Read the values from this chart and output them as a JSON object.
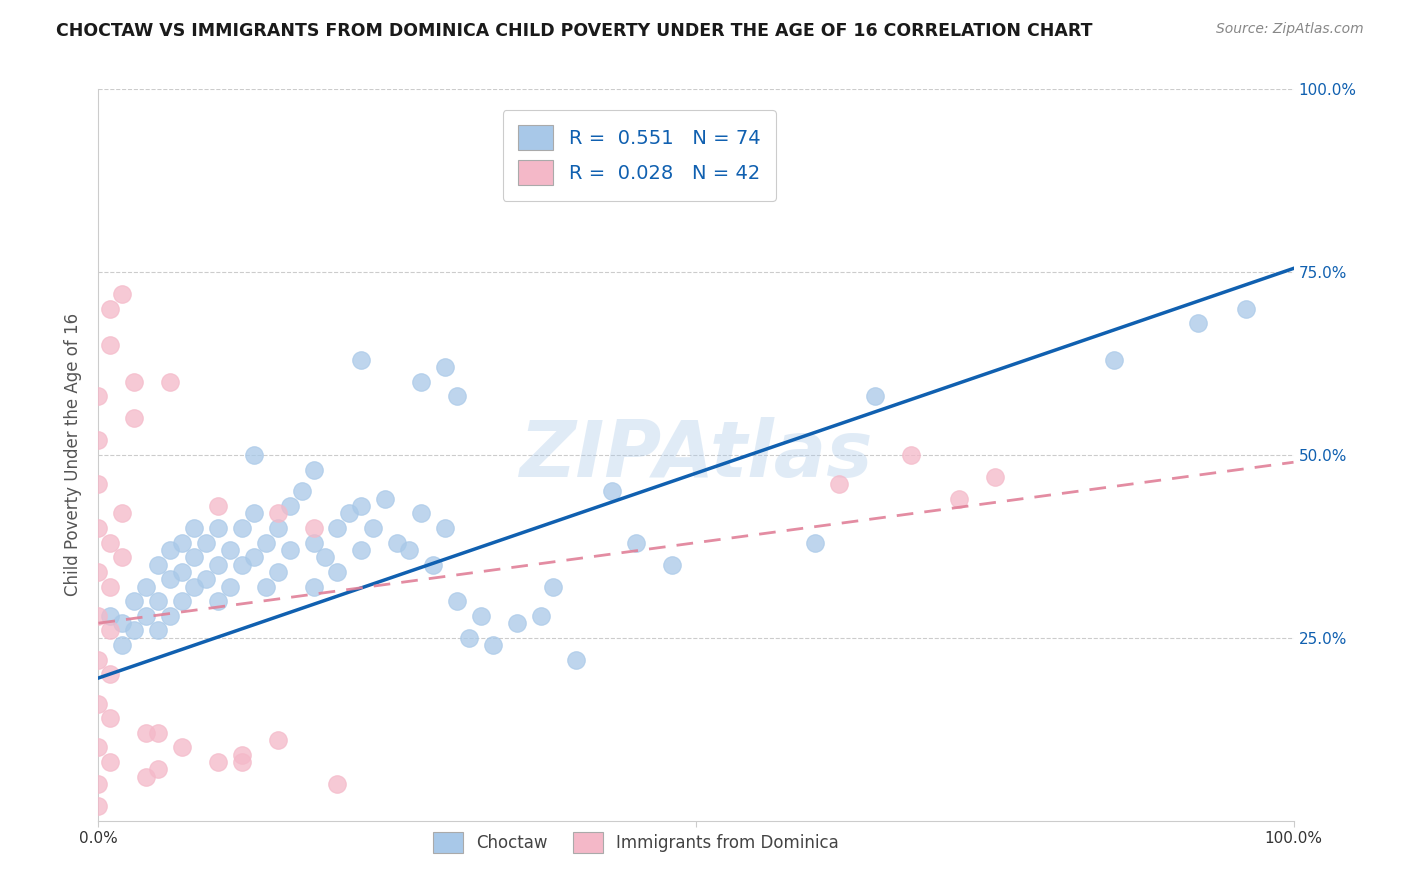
{
  "title": "CHOCTAW VS IMMIGRANTS FROM DOMINICA CHILD POVERTY UNDER THE AGE OF 16 CORRELATION CHART",
  "source": "Source: ZipAtlas.com",
  "ylabel": "Child Poverty Under the Age of 16",
  "watermark": "ZIPAtlas",
  "legend1_R": "0.551",
  "legend1_N": "74",
  "legend2_R": "0.028",
  "legend2_N": "42",
  "blue_color": "#a8c8e8",
  "pink_color": "#f4b8c8",
  "line_blue": "#1060b0",
  "line_pink": "#e08098",
  "xlim": [
    0,
    1
  ],
  "ylim": [
    0,
    1
  ],
  "blue_scatter_x": [
    0.01,
    0.02,
    0.02,
    0.03,
    0.03,
    0.04,
    0.04,
    0.05,
    0.05,
    0.05,
    0.06,
    0.06,
    0.06,
    0.07,
    0.07,
    0.07,
    0.08,
    0.08,
    0.08,
    0.09,
    0.09,
    0.1,
    0.1,
    0.1,
    0.11,
    0.11,
    0.12,
    0.12,
    0.13,
    0.13,
    0.14,
    0.14,
    0.15,
    0.15,
    0.16,
    0.16,
    0.17,
    0.18,
    0.18,
    0.19,
    0.2,
    0.2,
    0.21,
    0.22,
    0.22,
    0.23,
    0.24,
    0.25,
    0.26,
    0.27,
    0.28,
    0.29,
    0.3,
    0.31,
    0.32,
    0.33,
    0.35,
    0.37,
    0.38,
    0.4,
    0.43,
    0.45,
    0.48,
    0.27,
    0.29,
    0.3,
    0.22,
    0.18,
    0.13,
    0.6,
    0.65,
    0.85,
    0.92,
    0.96
  ],
  "blue_scatter_y": [
    0.28,
    0.27,
    0.24,
    0.3,
    0.26,
    0.32,
    0.28,
    0.35,
    0.3,
    0.26,
    0.37,
    0.33,
    0.28,
    0.38,
    0.34,
    0.3,
    0.4,
    0.36,
    0.32,
    0.38,
    0.33,
    0.4,
    0.35,
    0.3,
    0.37,
    0.32,
    0.4,
    0.35,
    0.42,
    0.36,
    0.38,
    0.32,
    0.4,
    0.34,
    0.43,
    0.37,
    0.45,
    0.38,
    0.32,
    0.36,
    0.4,
    0.34,
    0.42,
    0.43,
    0.37,
    0.4,
    0.44,
    0.38,
    0.37,
    0.42,
    0.35,
    0.4,
    0.3,
    0.25,
    0.28,
    0.24,
    0.27,
    0.28,
    0.32,
    0.22,
    0.45,
    0.38,
    0.35,
    0.6,
    0.62,
    0.58,
    0.63,
    0.48,
    0.5,
    0.38,
    0.58,
    0.63,
    0.68,
    0.7
  ],
  "pink_scatter_x": [
    0.0,
    0.0,
    0.0,
    0.0,
    0.0,
    0.0,
    0.0,
    0.0,
    0.0,
    0.0,
    0.0,
    0.01,
    0.01,
    0.01,
    0.01,
    0.01,
    0.01,
    0.02,
    0.02,
    0.03,
    0.04,
    0.05,
    0.06,
    0.1,
    0.12,
    0.15,
    0.62,
    0.68,
    0.72,
    0.75,
    0.1,
    0.15,
    0.18,
    0.2,
    0.01,
    0.01,
    0.02,
    0.03,
    0.04,
    0.05,
    0.07,
    0.12
  ],
  "pink_scatter_y": [
    0.58,
    0.52,
    0.46,
    0.4,
    0.34,
    0.28,
    0.22,
    0.16,
    0.1,
    0.05,
    0.02,
    0.38,
    0.32,
    0.26,
    0.2,
    0.14,
    0.08,
    0.42,
    0.36,
    0.55,
    0.06,
    0.07,
    0.6,
    0.08,
    0.09,
    0.11,
    0.46,
    0.5,
    0.44,
    0.47,
    0.43,
    0.42,
    0.4,
    0.05,
    0.7,
    0.65,
    0.72,
    0.6,
    0.12,
    0.12,
    0.1,
    0.08
  ],
  "blue_line_x": [
    0,
    1
  ],
  "blue_line_y": [
    0.195,
    0.755
  ],
  "pink_line_x": [
    0,
    1
  ],
  "pink_line_y": [
    0.27,
    0.49
  ]
}
